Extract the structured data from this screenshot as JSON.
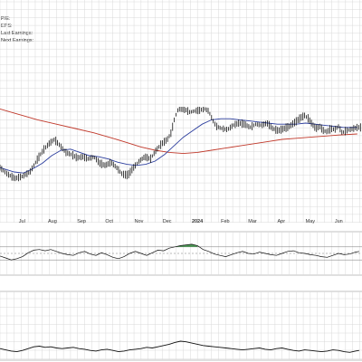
{
  "info": {
    "lines": [
      "P/E:",
      "EPS:",
      "Last Earnings:",
      "Next Earnings:"
    ]
  },
  "chart_data": {
    "type": "line",
    "x_ticks": [
      {
        "label": "Jul",
        "day": 10,
        "bold": false
      },
      {
        "label": "Aug",
        "day": 41,
        "bold": false
      },
      {
        "label": "Sep",
        "day": 72,
        "bold": false
      },
      {
        "label": "Oct",
        "day": 102,
        "bold": false
      },
      {
        "label": "Nov",
        "day": 133,
        "bold": false
      },
      {
        "label": "Dec",
        "day": 163,
        "bold": false
      },
      {
        "label": "2024",
        "day": 194,
        "bold": true
      },
      {
        "label": "Feb",
        "day": 225,
        "bold": false
      },
      {
        "label": "Mar",
        "day": 254,
        "bold": false
      },
      {
        "label": "Apr",
        "day": 285,
        "bold": false
      },
      {
        "label": "May",
        "day": 315,
        "bold": false
      },
      {
        "label": "Jun",
        "day": 346,
        "bold": false
      }
    ],
    "x_range": [
      -10,
      375
    ],
    "price_panel": {
      "ylim": [
        0,
        100
      ],
      "grid": true,
      "price_series": [
        [
          -10,
          44
        ],
        [
          -2,
          38
        ],
        [
          6,
          34
        ],
        [
          14,
          36
        ],
        [
          22,
          40
        ],
        [
          30,
          52
        ],
        [
          36,
          60
        ],
        [
          42,
          66
        ],
        [
          48,
          70
        ],
        [
          54,
          64
        ],
        [
          60,
          58
        ],
        [
          66,
          56
        ],
        [
          72,
          53
        ],
        [
          78,
          54
        ],
        [
          84,
          52
        ],
        [
          90,
          54
        ],
        [
          96,
          48
        ],
        [
          102,
          46
        ],
        [
          108,
          49
        ],
        [
          114,
          44
        ],
        [
          120,
          38
        ],
        [
          126,
          37
        ],
        [
          132,
          44
        ],
        [
          138,
          50
        ],
        [
          144,
          54
        ],
        [
          150,
          52
        ],
        [
          156,
          60
        ],
        [
          162,
          66
        ],
        [
          168,
          70
        ],
        [
          172,
          76
        ],
        [
          176,
          90
        ],
        [
          180,
          99
        ],
        [
          186,
          98
        ],
        [
          192,
          95
        ],
        [
          196,
          96
        ],
        [
          202,
          97
        ],
        [
          208,
          98
        ],
        [
          212,
          96
        ],
        [
          216,
          88
        ],
        [
          220,
          82
        ],
        [
          226,
          80
        ],
        [
          232,
          79
        ],
        [
          238,
          83
        ],
        [
          244,
          85
        ],
        [
          250,
          84
        ],
        [
          256,
          81
        ],
        [
          262,
          84
        ],
        [
          268,
          83
        ],
        [
          274,
          85
        ],
        [
          280,
          80
        ],
        [
          286,
          78
        ],
        [
          292,
          80
        ],
        [
          298,
          82
        ],
        [
          304,
          86
        ],
        [
          310,
          90
        ],
        [
          314,
          92
        ],
        [
          318,
          89
        ],
        [
          322,
          84
        ],
        [
          326,
          80
        ],
        [
          330,
          82
        ],
        [
          334,
          78
        ],
        [
          338,
          77
        ],
        [
          342,
          80
        ],
        [
          346,
          79
        ],
        [
          350,
          82
        ],
        [
          354,
          76
        ],
        [
          358,
          78
        ],
        [
          362,
          79
        ],
        [
          366,
          80
        ],
        [
          370,
          81
        ]
      ],
      "ma_long": [
        [
          -10,
          98
        ],
        [
          10,
          93
        ],
        [
          30,
          88
        ],
        [
          50,
          84
        ],
        [
          70,
          80
        ],
        [
          90,
          76
        ],
        [
          110,
          71
        ],
        [
          125,
          67
        ],
        [
          140,
          63
        ],
        [
          155,
          60
        ],
        [
          170,
          58
        ],
        [
          185,
          57
        ],
        [
          200,
          58
        ],
        [
          215,
          60
        ],
        [
          230,
          62
        ],
        [
          245,
          64
        ],
        [
          260,
          66
        ],
        [
          275,
          68
        ],
        [
          290,
          70
        ],
        [
          305,
          71
        ],
        [
          320,
          72
        ],
        [
          335,
          73
        ],
        [
          350,
          74
        ],
        [
          370,
          75
        ]
      ],
      "ma_short": [
        [
          -10,
          44
        ],
        [
          5,
          40
        ],
        [
          15,
          39
        ],
        [
          25,
          43
        ],
        [
          35,
          48
        ],
        [
          45,
          55
        ],
        [
          55,
          60
        ],
        [
          65,
          61
        ],
        [
          75,
          58
        ],
        [
          85,
          55
        ],
        [
          95,
          54
        ],
        [
          105,
          52
        ],
        [
          115,
          49
        ],
        [
          125,
          47
        ],
        [
          135,
          46
        ],
        [
          145,
          47
        ],
        [
          155,
          50
        ],
        [
          165,
          56
        ],
        [
          175,
          64
        ],
        [
          185,
          72
        ],
        [
          195,
          78
        ],
        [
          205,
          84
        ],
        [
          215,
          88
        ],
        [
          225,
          89
        ],
        [
          235,
          89
        ],
        [
          245,
          88
        ],
        [
          255,
          87
        ],
        [
          265,
          86
        ],
        [
          275,
          85
        ],
        [
          285,
          84
        ],
        [
          295,
          84
        ],
        [
          305,
          84
        ],
        [
          315,
          85
        ],
        [
          325,
          84
        ],
        [
          335,
          83
        ],
        [
          345,
          82
        ],
        [
          355,
          81
        ],
        [
          370,
          81
        ]
      ]
    },
    "oscillator_panel": {
      "ylim": [
        0,
        100
      ],
      "reference_levels": [
        70,
        50,
        30
      ],
      "highlight_above": 70,
      "series": [
        [
          -10,
          42
        ],
        [
          -4,
          36
        ],
        [
          2,
          30
        ],
        [
          8,
          34
        ],
        [
          14,
          40
        ],
        [
          20,
          52
        ],
        [
          26,
          60
        ],
        [
          32,
          62
        ],
        [
          38,
          58
        ],
        [
          44,
          62
        ],
        [
          50,
          56
        ],
        [
          56,
          50
        ],
        [
          62,
          46
        ],
        [
          68,
          44
        ],
        [
          74,
          52
        ],
        [
          80,
          56
        ],
        [
          86,
          48
        ],
        [
          92,
          44
        ],
        [
          98,
          52
        ],
        [
          104,
          46
        ],
        [
          110,
          38
        ],
        [
          116,
          34
        ],
        [
          122,
          40
        ],
        [
          128,
          50
        ],
        [
          134,
          56
        ],
        [
          140,
          50
        ],
        [
          146,
          44
        ],
        [
          152,
          52
        ],
        [
          158,
          60
        ],
        [
          164,
          58
        ],
        [
          170,
          66
        ],
        [
          176,
          70
        ],
        [
          182,
          74
        ],
        [
          188,
          76
        ],
        [
          194,
          78
        ],
        [
          200,
          74
        ],
        [
          206,
          62
        ],
        [
          212,
          56
        ],
        [
          218,
          48
        ],
        [
          224,
          44
        ],
        [
          230,
          40
        ],
        [
          236,
          46
        ],
        [
          242,
          52
        ],
        [
          248,
          56
        ],
        [
          254,
          50
        ],
        [
          260,
          48
        ],
        [
          266,
          54
        ],
        [
          272,
          50
        ],
        [
          278,
          46
        ],
        [
          284,
          44
        ],
        [
          290,
          50
        ],
        [
          296,
          56
        ],
        [
          302,
          58
        ],
        [
          308,
          52
        ],
        [
          314,
          50
        ],
        [
          320,
          46
        ],
        [
          326,
          44
        ],
        [
          332,
          40
        ],
        [
          338,
          38
        ],
        [
          344,
          44
        ],
        [
          350,
          50
        ],
        [
          356,
          46
        ],
        [
          362,
          48
        ],
        [
          368,
          54
        ],
        [
          372,
          56
        ]
      ]
    },
    "lower_panel": {
      "ylim": [
        0,
        100
      ],
      "series": [
        [
          -10,
          20
        ],
        [
          -4,
          16
        ],
        [
          2,
          12
        ],
        [
          8,
          10
        ],
        [
          14,
          14
        ],
        [
          20,
          20
        ],
        [
          26,
          26
        ],
        [
          32,
          28
        ],
        [
          38,
          24
        ],
        [
          44,
          26
        ],
        [
          50,
          22
        ],
        [
          56,
          20
        ],
        [
          62,
          22
        ],
        [
          68,
          24
        ],
        [
          74,
          20
        ],
        [
          80,
          18
        ],
        [
          86,
          14
        ],
        [
          92,
          12
        ],
        [
          98,
          16
        ],
        [
          104,
          18
        ],
        [
          110,
          14
        ],
        [
          116,
          10
        ],
        [
          122,
          12
        ],
        [
          128,
          16
        ],
        [
          134,
          18
        ],
        [
          140,
          20
        ],
        [
          146,
          24
        ],
        [
          152,
          22
        ],
        [
          158,
          26
        ],
        [
          164,
          30
        ],
        [
          170,
          34
        ],
        [
          176,
          40
        ],
        [
          182,
          44
        ],
        [
          188,
          42
        ],
        [
          194,
          38
        ],
        [
          200,
          34
        ],
        [
          206,
          30
        ],
        [
          212,
          28
        ],
        [
          218,
          26
        ],
        [
          224,
          24
        ],
        [
          230,
          22
        ],
        [
          236,
          20
        ],
        [
          242,
          18
        ],
        [
          248,
          16
        ],
        [
          254,
          18
        ],
        [
          260,
          20
        ],
        [
          266,
          22
        ],
        [
          272,
          18
        ],
        [
          278,
          16
        ],
        [
          284,
          20
        ],
        [
          290,
          22
        ],
        [
          296,
          18
        ],
        [
          302,
          14
        ],
        [
          308,
          12
        ],
        [
          314,
          16
        ],
        [
          320,
          14
        ],
        [
          326,
          12
        ],
        [
          332,
          10
        ],
        [
          338,
          12
        ],
        [
          344,
          16
        ],
        [
          350,
          14
        ],
        [
          356,
          10
        ],
        [
          362,
          8
        ],
        [
          368,
          12
        ],
        [
          372,
          14
        ]
      ]
    }
  },
  "colors": {
    "ma_long": "#c0392b",
    "ma_short": "#2c3e9e",
    "price": "#111111",
    "highlight": "#2e8b3a",
    "grid": "#d9d9d9"
  }
}
